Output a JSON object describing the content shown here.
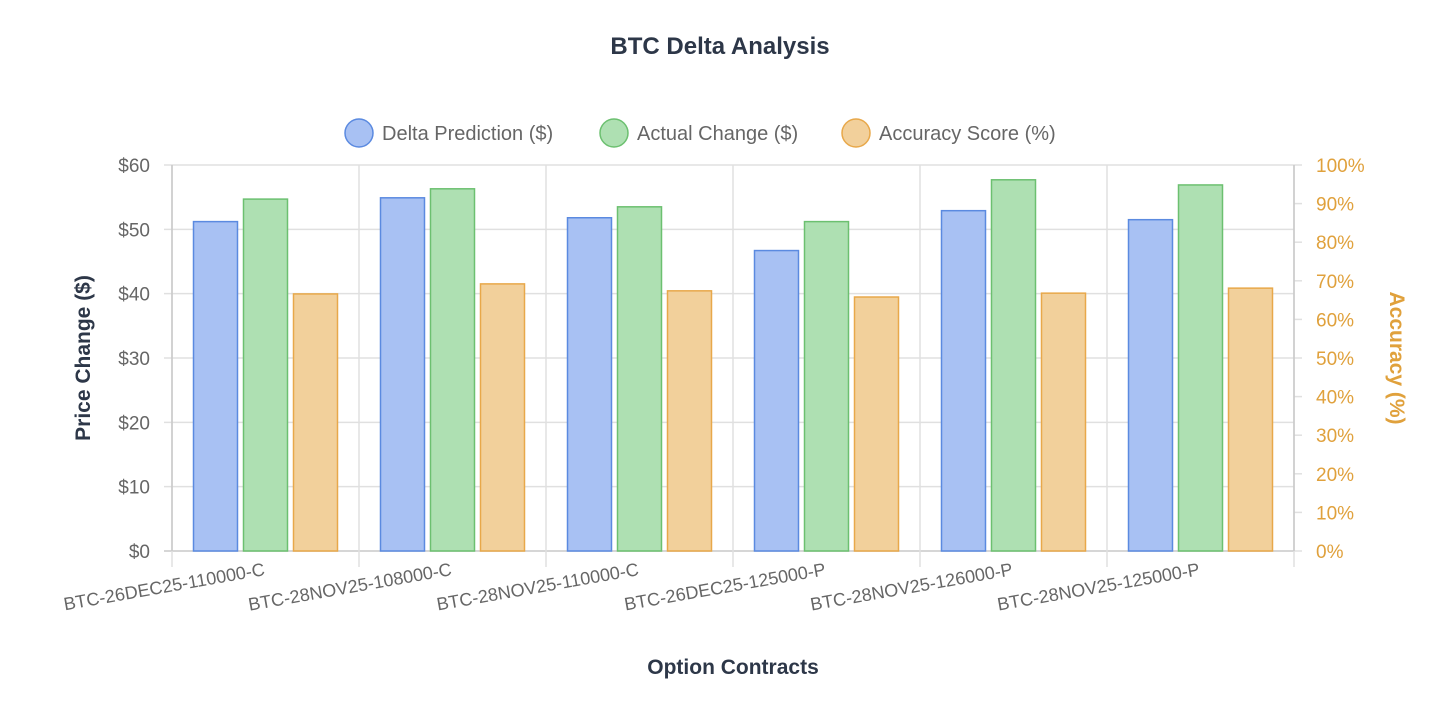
{
  "chart_data": {
    "type": "bar",
    "title": "BTC Delta Analysis",
    "xlabel": "Option Contracts",
    "ylabel": "Price Change ($)",
    "y2label": "Accuracy (%)",
    "ylim": [
      0,
      60
    ],
    "y2lim": [
      0,
      100
    ],
    "yticks": [
      "$0",
      "$10",
      "$20",
      "$30",
      "$40",
      "$50",
      "$60"
    ],
    "y2ticks": [
      "0%",
      "10%",
      "20%",
      "30%",
      "40%",
      "50%",
      "60%",
      "70%",
      "80%",
      "90%",
      "100%"
    ],
    "grid": true,
    "legend_position": "top",
    "categories": [
      "BTC-26DEC25-110000-C",
      "BTC-28NOV25-108000-C",
      "BTC-28NOV25-110000-C",
      "BTC-26DEC25-125000-P",
      "BTC-28NOV25-126000-P",
      "BTC-28NOV25-125000-P"
    ],
    "series": [
      {
        "name": "Delta Prediction ($)",
        "axis": "left",
        "fill": "#a8c1f3",
        "stroke": "#5b8ae0",
        "values": [
          51.2,
          54.9,
          51.8,
          46.7,
          52.9,
          51.5
        ]
      },
      {
        "name": "Actual Change ($)",
        "axis": "left",
        "fill": "#aee0b2",
        "stroke": "#6cc070",
        "values": [
          54.7,
          56.3,
          53.5,
          51.2,
          57.7,
          56.9
        ]
      },
      {
        "name": "Accuracy Score (%)",
        "axis": "right",
        "fill": "#f2d09b",
        "stroke": "#e8a84a",
        "values": [
          66.6,
          69.2,
          67.4,
          65.8,
          66.8,
          68.1
        ]
      }
    ],
    "colors": {
      "text": "#2d3748",
      "tick": "#666666",
      "right_axis": "#e0a13c",
      "grid": "#e0e0e0"
    }
  }
}
